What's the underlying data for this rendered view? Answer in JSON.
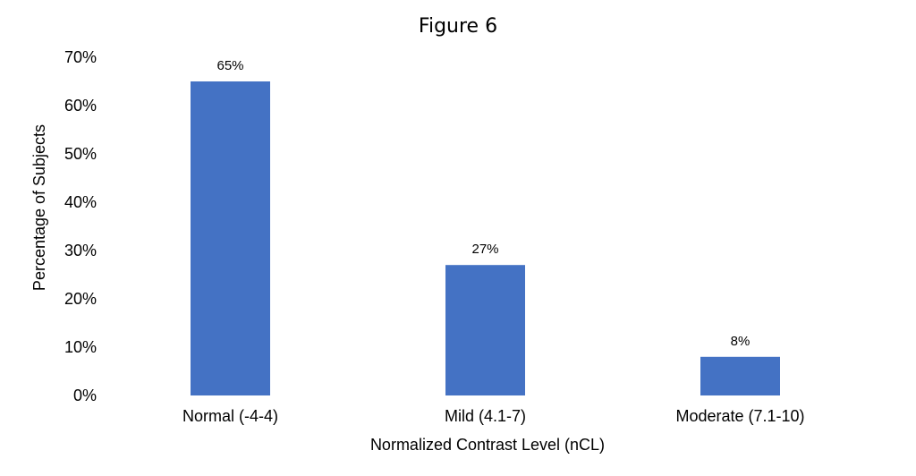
{
  "chart_data": {
    "type": "bar",
    "title": "Figure 6",
    "xlabel": "Normalized Contrast Level (nCL)",
    "ylabel": "Percentage of Subjects",
    "categories": [
      "Normal (-4-4)",
      "Mild (4.1-7)",
      "Moderate (7.1-10)"
    ],
    "values": [
      65,
      27,
      8
    ],
    "value_labels": [
      "65%",
      "27%",
      "8%"
    ],
    "ylim": [
      0,
      70
    ],
    "yticks": [
      0,
      10,
      20,
      30,
      40,
      50,
      60,
      70
    ],
    "ytick_labels": [
      "0%",
      "10%",
      "20%",
      "30%",
      "40%",
      "50%",
      "60%",
      "70%"
    ],
    "bar_color": "#4472C4",
    "grid": false,
    "legend": "none"
  }
}
